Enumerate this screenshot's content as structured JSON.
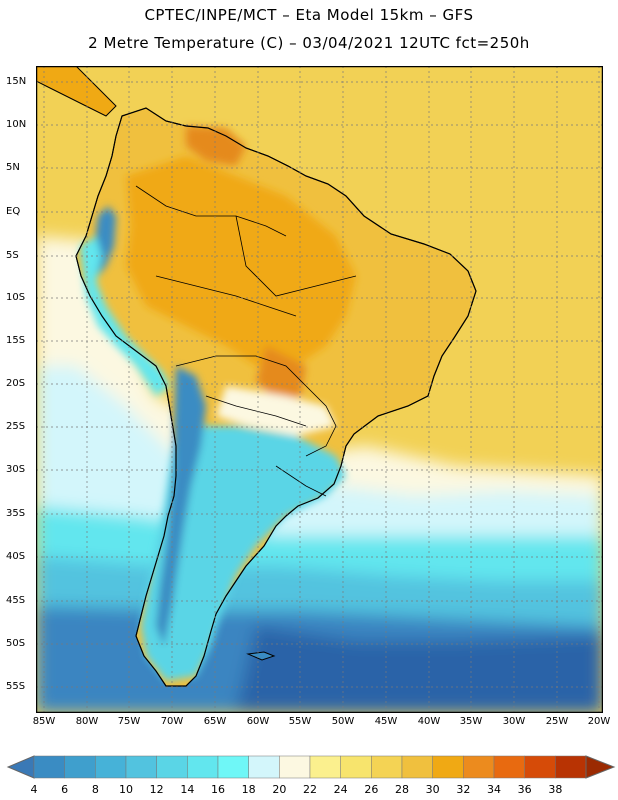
{
  "title": {
    "line1": "CPTEC/INPE/MCT –  Eta Model 15km – GFS",
    "line2": "2 Metre Temperature (C) – 03/04/2021 12UTC fct=250h"
  },
  "axes": {
    "lat_labels": [
      "15N",
      "10N",
      "5N",
      "EQ",
      "5S",
      "10S",
      "15S",
      "20S",
      "25S",
      "30S",
      "35S",
      "40S",
      "45S",
      "50S",
      "55S"
    ],
    "lon_labels": [
      "85W",
      "80W",
      "75W",
      "70W",
      "65W",
      "60W",
      "55W",
      "50W",
      "45W",
      "40W",
      "35W",
      "30W",
      "25W",
      "20W"
    ]
  },
  "colorbar": {
    "labels": [
      "4",
      "6",
      "8",
      "10",
      "12",
      "14",
      "16",
      "18",
      "20",
      "22",
      "24",
      "26",
      "28",
      "30",
      "32",
      "34",
      "36",
      "38"
    ],
    "colors": [
      "#3a79b6",
      "#3a8cc3",
      "#3f9fcd",
      "#46b2d8",
      "#52c3df",
      "#5ad5e6",
      "#62e6ee",
      "#6ff7f7",
      "#d3f6fb",
      "#fcf8e1",
      "#fbf08e",
      "#f7e46d",
      "#f4d354",
      "#f0c03e",
      "#f0a914",
      "#ec8b1e",
      "#e86a10",
      "#d64b08",
      "#b83303",
      "#9b2a02"
    ]
  },
  "map": {
    "region": "South America",
    "field": "2 m temperature",
    "colors": {
      "ocean_south_deep": "#2b64a8",
      "ocean_south_mid": "#3a85c1",
      "ocean_cool": "#52c3df",
      "ocean_mild": "#d3f6fb",
      "ocean_warm": "#f4d354",
      "land_hot": "#f0a914",
      "land_very_hot": "#d6731a",
      "land_cool": "#62e6ee",
      "andes_cold": "#3a8cc3",
      "coast": "#000000"
    }
  }
}
